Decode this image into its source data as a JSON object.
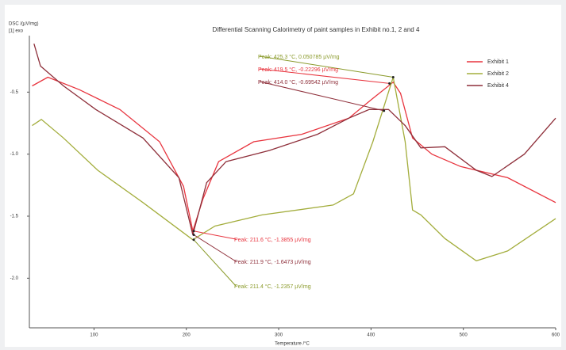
{
  "chart_data": {
    "type": "line",
    "title": "Differential Scanning Calorimetry of paint samples in Exhibit no.1, 2 and 4",
    "ylabel": "DSC /(µV/mg)",
    "ylabel_note": "[1] exo",
    "xlabel": "Temperature /°C",
    "xlim": [
      30,
      600
    ],
    "ylim": [
      -2.4,
      0
    ],
    "xticks": [
      100,
      200,
      300,
      400,
      500,
      600
    ],
    "yticks": [
      {
        "value": -0.5,
        "label": "-0.5"
      },
      {
        "value": -1.0,
        "label": "-1.0"
      },
      {
        "value": -1.5,
        "label": "-1.5"
      },
      {
        "value": -2.0,
        "label": "-2.0"
      }
    ],
    "legend": "top-right",
    "series": [
      {
        "name": "Exhibit 1",
        "color": "#e8343e",
        "x": [
          33,
          50,
          84,
          128,
          171,
          197,
          207,
          218,
          235,
          273,
          325,
          376,
          402,
          424,
          432,
          445,
          466,
          497,
          548,
          600
        ],
        "values": [
          -0.45,
          -0.38,
          -0.48,
          -0.64,
          -0.9,
          -1.26,
          -1.62,
          -1.36,
          -1.06,
          -0.9,
          -0.84,
          -0.71,
          -0.55,
          -0.42,
          -0.51,
          -0.87,
          -1.0,
          -1.1,
          -1.19,
          -1.39
        ]
      },
      {
        "name": "Exhibit 2",
        "color": "#a3ad3c",
        "x": [
          33,
          43,
          67,
          104,
          153,
          207,
          231,
          282,
          359,
          381,
          402,
          424,
          437,
          445,
          454,
          480,
          514,
          548,
          600
        ],
        "values": [
          -0.77,
          -0.72,
          -0.87,
          -1.13,
          -1.39,
          -1.69,
          -1.58,
          -1.49,
          -1.41,
          -1.32,
          -0.9,
          -0.38,
          -0.9,
          -1.45,
          -1.49,
          -1.68,
          -1.86,
          -1.78,
          -1.52
        ]
      },
      {
        "name": "Exhibit 4",
        "color": "#8e2f3a",
        "x": [
          35,
          42,
          67,
          102,
          153,
          192,
          207,
          222,
          243,
          290,
          342,
          376,
          398,
          419,
          437,
          454,
          480,
          514,
          531,
          566,
          600
        ],
        "values": [
          -0.11,
          -0.29,
          -0.45,
          -0.64,
          -0.87,
          -1.19,
          -1.65,
          -1.23,
          -1.06,
          -0.97,
          -0.84,
          -0.71,
          -0.64,
          -0.64,
          -0.77,
          -0.95,
          -0.94,
          -1.13,
          -1.18,
          -1.0,
          -0.71
        ]
      }
    ],
    "annotations": [
      {
        "text": "Peak: 425.3 °C, 0.050785 µV/mg",
        "color": "#8a9a2a",
        "x": 424,
        "y": -0.38
      },
      {
        "text": "Peak: 419.5 °C, -0.22296 µV/mg",
        "color": "#e8343e",
        "x": 420,
        "y": -0.43
      },
      {
        "text": "Peak: 414.0 °C, -0.69542 µV/mg",
        "color": "#8e2f3a",
        "x": 414,
        "y": -0.65
      },
      {
        "text": "Peak: 211.6 °C, -1.3855 µV/mg",
        "color": "#e8343e",
        "x": 208,
        "y": -1.62
      },
      {
        "text": "Peak: 211.9 °C, -1.6473 µV/mg",
        "color": "#8e2f3a",
        "x": 208,
        "y": -1.65
      },
      {
        "text": "Peak: 211.4 °C, -1.2357 µV/mg",
        "color": "#8a9a2a",
        "x": 208,
        "y": -1.69
      }
    ]
  }
}
